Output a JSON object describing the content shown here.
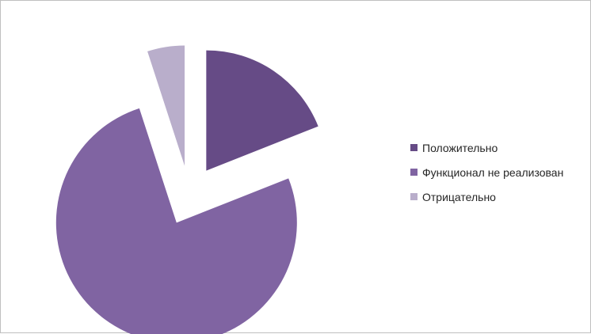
{
  "chart_data": {
    "type": "pie",
    "title": "",
    "exploded": true,
    "legend_position": "right",
    "categories": [
      "Положительно",
      "Функционал не реализован",
      "Отрицательно"
    ],
    "values": [
      19,
      76,
      5
    ],
    "colors": [
      "#664b86",
      "#8064a2",
      "#b9aecb"
    ]
  }
}
